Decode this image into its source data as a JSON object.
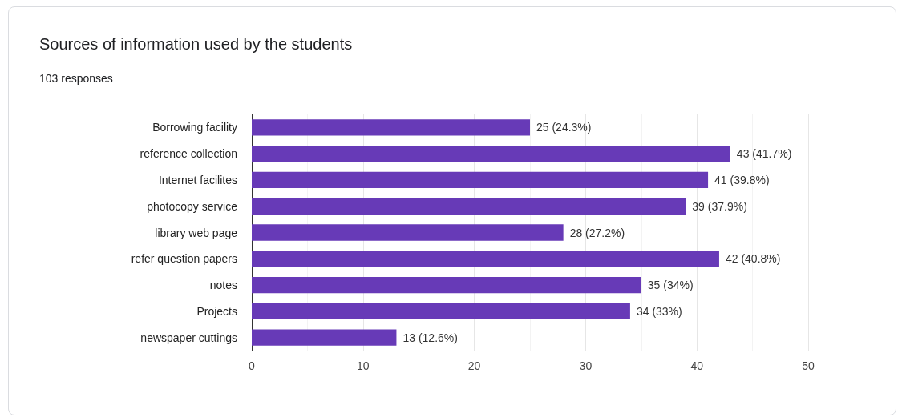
{
  "chart_data": {
    "type": "bar",
    "orientation": "horizontal",
    "title": "Sources of information used by the students",
    "subtitle": "103 responses",
    "categories": [
      "Borrowing facility",
      "reference collection",
      "Internet facilites",
      "photocopy service",
      "library web page",
      "refer question papers",
      "notes",
      "Projects",
      "newspaper cuttings"
    ],
    "values": [
      25,
      43,
      41,
      39,
      28,
      42,
      35,
      34,
      13
    ],
    "value_labels": [
      "25 (24.3%)",
      "43 (41.7%)",
      "41 (39.8%)",
      "39 (37.9%)",
      "28 (27.2%)",
      "42 (40.8%)",
      "35 (34%)",
      "34 (33%)",
      "13 (12.6%)"
    ],
    "color": "#673ab7",
    "xlim": [
      0,
      50
    ],
    "xticks": [
      0,
      10,
      20,
      30,
      40,
      50
    ],
    "grid": "x"
  }
}
